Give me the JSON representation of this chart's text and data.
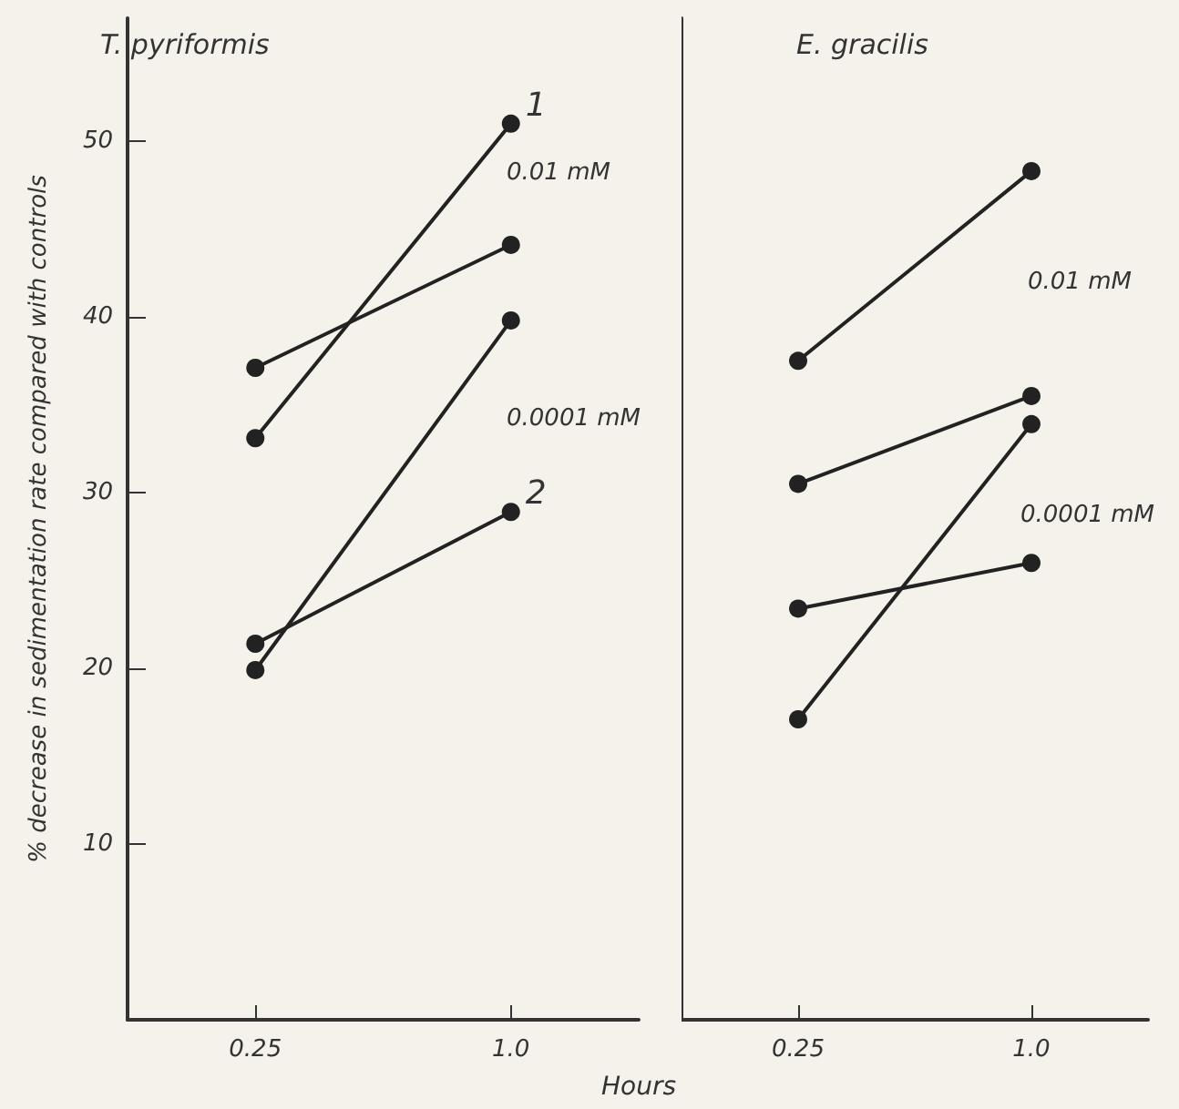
{
  "chart_data": [
    {
      "type": "line",
      "title": "T. pyriformis",
      "ylabel": "% decrease in sedimentation rate compared with controls",
      "xlabel": "Hours",
      "categories": [
        "0.25",
        "1.0"
      ],
      "ylim": [
        0,
        57
      ],
      "yticks": [
        10,
        20,
        30,
        40,
        50
      ],
      "marker": "circle",
      "series": [
        {
          "name": "1",
          "color": "#222222",
          "values": [
            33.1,
            51
          ]
        },
        {
          "color": "#222222",
          "values": [
            37.1,
            44.1
          ]
        },
        {
          "name": "2",
          "color": "#222222",
          "values": [
            21.4,
            28.9
          ]
        },
        {
          "color": "#222222",
          "values": [
            19.9,
            39.8
          ]
        }
      ],
      "annotations": [
        "0.01 mM",
        "0.0001 mM"
      ]
    },
    {
      "type": "line",
      "title": "E. gracilis",
      "categories": [
        "0.25",
        "1.0"
      ],
      "ylim": [
        0,
        57
      ],
      "tick_labels": "x",
      "marker": "circle",
      "series": [
        {
          "color": "#222222",
          "values": [
            37.5,
            48.3
          ]
        },
        {
          "color": "#222222",
          "values": [
            30.5,
            35.5
          ]
        },
        {
          "color": "#222222",
          "values": [
            23.4,
            26
          ]
        },
        {
          "color": "#222222",
          "values": [
            17.1,
            33.9
          ]
        }
      ],
      "annotations": [
        "0.01 mM",
        "0.0001 mM"
      ]
    }
  ]
}
